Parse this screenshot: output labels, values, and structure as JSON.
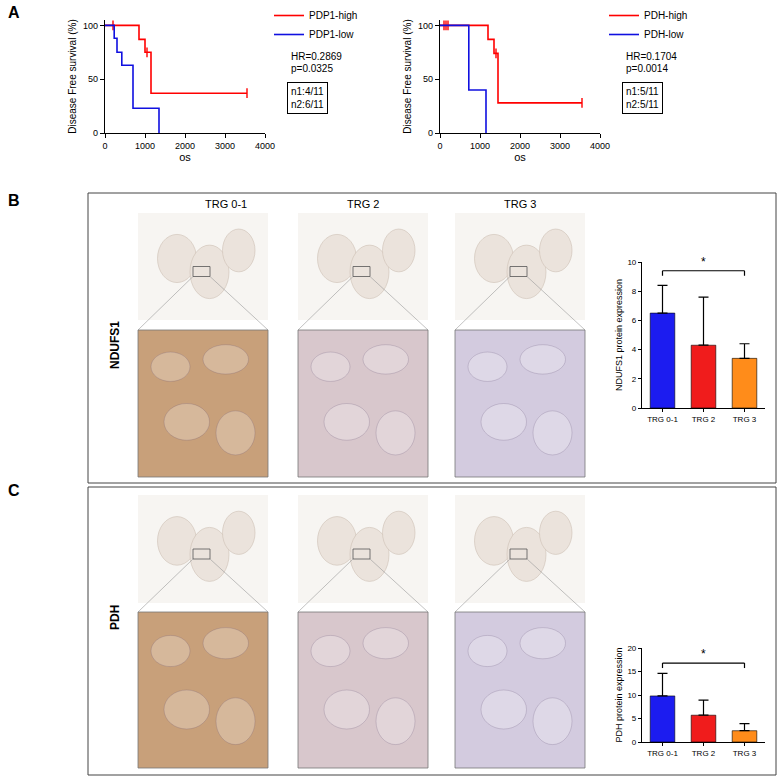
{
  "chart_data": [
    {
      "type": "line",
      "line_style": "step",
      "xlabel": "os",
      "ylabel": "Disease Free survival (%)",
      "xlim": [
        0,
        4000
      ],
      "xticks": [
        0,
        1000,
        2000,
        3000,
        4000
      ],
      "ylim": [
        0,
        105
      ],
      "yticks": [
        0,
        50,
        100
      ],
      "legend": "upper right",
      "series": [
        {
          "name": "PDP1-high",
          "color": "#ff0000",
          "x": [
            0,
            850,
            1000,
            1150,
            3550
          ],
          "values": [
            100,
            87,
            75,
            37,
            37
          ],
          "censored": {
            "x": [
              200,
              1050,
              3550
            ],
            "y": [
              100,
              75,
              37
            ]
          }
        },
        {
          "name": "PDP1-low",
          "color": "#1010e0",
          "x": [
            0,
            230,
            300,
            420,
            700,
            1350
          ],
          "values": [
            100,
            88,
            75,
            63,
            23,
            0
          ]
        }
      ],
      "annotations": [
        "HR=0.2869",
        "p=0.0325"
      ],
      "boxed_annotations": [
        "n1:4/11",
        "n2:6/11"
      ]
    },
    {
      "type": "line",
      "line_style": "step",
      "xlabel": "os",
      "ylabel": "Disease Free survival (%)",
      "xlim": [
        0,
        4000
      ],
      "xticks": [
        0,
        1000,
        2000,
        3000,
        4000
      ],
      "ylim": [
        0,
        105
      ],
      "yticks": [
        0,
        50,
        100
      ],
      "legend": "upper right",
      "series": [
        {
          "name": "PDH-high",
          "color": "#ff0000",
          "x": [
            0,
            1200,
            1350,
            1450,
            3550
          ],
          "values": [
            100,
            87,
            74,
            28,
            28
          ],
          "censored": {
            "x": [
              100,
              150,
              200,
              1400,
              3550
            ],
            "y": [
              100,
              100,
              100,
              74,
              28
            ]
          }
        },
        {
          "name": "PDH-low",
          "color": "#1010e0",
          "x": [
            0,
            720,
            1150
          ],
          "values": [
            100,
            40,
            0
          ]
        }
      ],
      "annotations": [
        "HR=0.1704",
        "p=0.0014"
      ],
      "boxed_annotations": [
        "n1:5/11",
        "n2:5/11"
      ]
    },
    {
      "type": "bar",
      "ylabel": "NDUFS1 protein expression",
      "categories": [
        "TRG 0-1",
        "TRG 2",
        "TRG 3"
      ],
      "values": [
        6.5,
        4.3,
        3.4
      ],
      "errors": [
        1.9,
        3.3,
        1.0
      ],
      "colors": [
        "#1c1cf0",
        "#f01c1c",
        "#ff8c1a"
      ],
      "ylim": [
        0,
        10
      ],
      "yticks": [
        0,
        2,
        4,
        6,
        8,
        10
      ],
      "significance": {
        "from": "TRG 0-1",
        "to": "TRG 3",
        "y": 9.4,
        "label": "*"
      }
    },
    {
      "type": "bar",
      "ylabel": "PDH protein expression",
      "categories": [
        "TRG 0-1",
        "TRG 2",
        "TRG 3"
      ],
      "values": [
        9.8,
        5.7,
        2.4
      ],
      "errors": [
        4.8,
        3.2,
        1.5
      ],
      "colors": [
        "#1c1cf0",
        "#f01c1c",
        "#ff8c1a"
      ],
      "ylim": [
        0,
        20
      ],
      "yticks": [
        0,
        5,
        10,
        15,
        20
      ],
      "significance": {
        "from": "TRG 0-1",
        "to": "TRG 3",
        "y": 16.8,
        "label": "*"
      }
    }
  ],
  "figure": {
    "panel_labels": [
      "A",
      "B",
      "C"
    ],
    "image_rows": [
      {
        "label": "NDUFS1",
        "columns": [
          "TRG 0-1",
          "TRG 2",
          "TRG 3"
        ]
      },
      {
        "label": "PDH"
      }
    ]
  }
}
